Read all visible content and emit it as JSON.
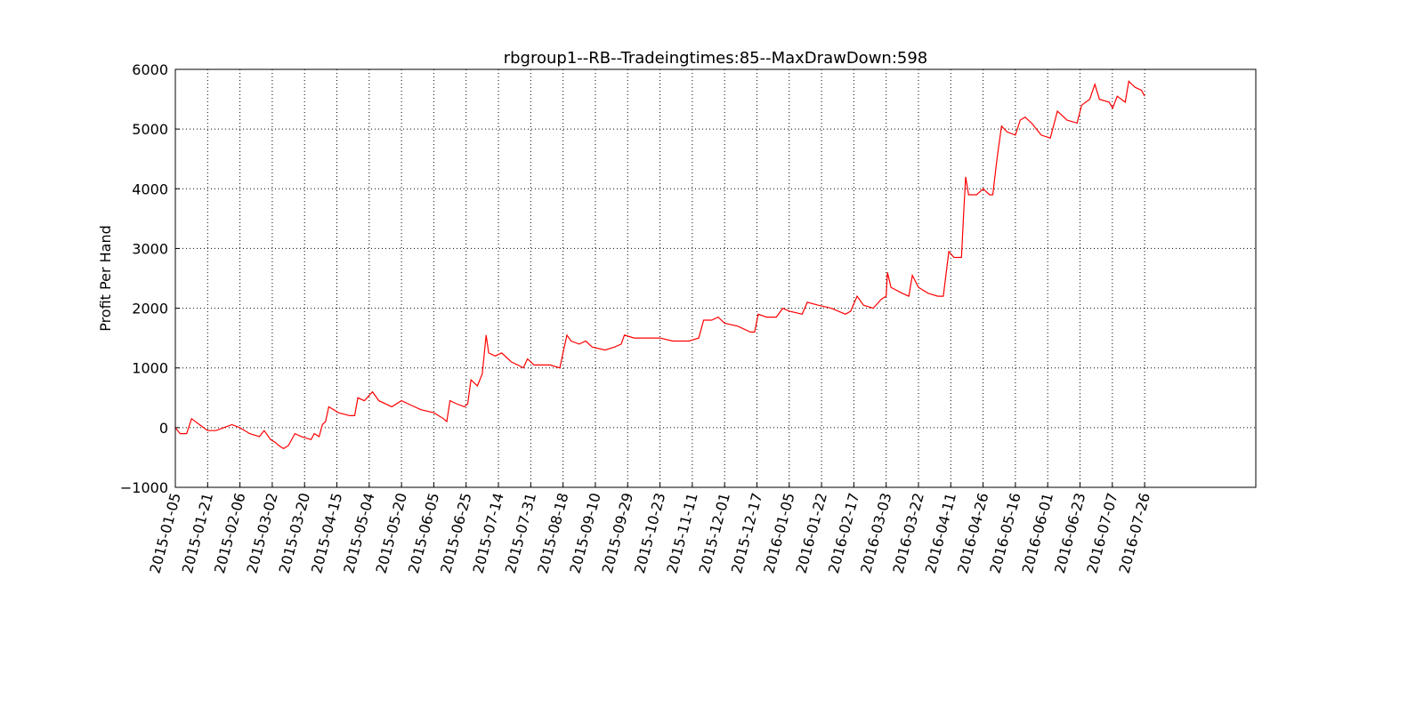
{
  "chart_data": {
    "type": "line",
    "title": "rbgroup1--RB--Tradeingtimes:85--MaxDrawDown:598",
    "ylabel": "Profit Per Hand",
    "color": "#ff0000",
    "grid": true,
    "xlim": [
      0,
      3344
    ],
    "ylim": [
      -1000,
      6000
    ],
    "yticks": [
      {
        "value": -1000,
        "label": "−1000"
      },
      0,
      1000,
      2000,
      3000,
      4000,
      5000,
      6000
    ],
    "xticks": [
      {
        "value": 0,
        "label": "2015-01-05"
      },
      {
        "value": 100,
        "label": "2015-01-21"
      },
      {
        "value": 200,
        "label": "2015-02-06"
      },
      {
        "value": 300,
        "label": "2015-03-02"
      },
      {
        "value": 400,
        "label": "2015-03-20"
      },
      {
        "value": 500,
        "label": "2015-04-15"
      },
      {
        "value": 600,
        "label": "2015-05-04"
      },
      {
        "value": 700,
        "label": "2015-05-20"
      },
      {
        "value": 800,
        "label": "2015-06-05"
      },
      {
        "value": 900,
        "label": "2015-06-25"
      },
      {
        "value": 1000,
        "label": "2015-07-14"
      },
      {
        "value": 1100,
        "label": "2015-07-31"
      },
      {
        "value": 1200,
        "label": "2015-08-18"
      },
      {
        "value": 1300,
        "label": "2015-09-10"
      },
      {
        "value": 1400,
        "label": "2015-09-29"
      },
      {
        "value": 1500,
        "label": "2015-10-23"
      },
      {
        "value": 1600,
        "label": "2015-11-11"
      },
      {
        "value": 1700,
        "label": "2015-12-01"
      },
      {
        "value": 1800,
        "label": "2015-12-17"
      },
      {
        "value": 1900,
        "label": "2016-01-05"
      },
      {
        "value": 2000,
        "label": "2016-01-22"
      },
      {
        "value": 2100,
        "label": "2016-02-17"
      },
      {
        "value": 2200,
        "label": "2016-03-03"
      },
      {
        "value": 2300,
        "label": "2016-03-22"
      },
      {
        "value": 2400,
        "label": "2016-04-11"
      },
      {
        "value": 2500,
        "label": "2016-04-26"
      },
      {
        "value": 2600,
        "label": "2016-05-16"
      },
      {
        "value": 2700,
        "label": "2016-06-01"
      },
      {
        "value": 2800,
        "label": "2016-06-23"
      },
      {
        "value": 2900,
        "label": "2016-07-07"
      },
      {
        "value": 3000,
        "label": "2016-07-26"
      }
    ],
    "x": [
      0,
      15,
      35,
      50,
      75,
      100,
      125,
      150,
      175,
      200,
      230,
      260,
      275,
      295,
      310,
      320,
      335,
      350,
      370,
      390,
      420,
      430,
      445,
      455,
      465,
      475,
      490,
      505,
      540,
      555,
      565,
      585,
      610,
      630,
      670,
      700,
      720,
      760,
      800,
      830,
      840,
      850,
      870,
      895,
      905,
      915,
      935,
      950,
      962,
      970,
      990,
      1010,
      1040,
      1060,
      1077,
      1090,
      1110,
      1160,
      1190,
      1200,
      1212,
      1225,
      1250,
      1270,
      1290,
      1330,
      1360,
      1380,
      1390,
      1420,
      1460,
      1500,
      1540,
      1590,
      1620,
      1635,
      1660,
      1680,
      1700,
      1740,
      1780,
      1793,
      1804,
      1830,
      1860,
      1880,
      1900,
      1940,
      1956,
      1990,
      2030,
      2074,
      2090,
      2110,
      2130,
      2160,
      2185,
      2200,
      2204,
      2215,
      2250,
      2270,
      2281,
      2300,
      2330,
      2360,
      2377,
      2394,
      2410,
      2433,
      2440,
      2446,
      2455,
      2480,
      2500,
      2520,
      2530,
      2543,
      2557,
      2575,
      2600,
      2615,
      2630,
      2650,
      2680,
      2708,
      2730,
      2760,
      2791,
      2805,
      2830,
      2846,
      2860,
      2890,
      2901,
      2915,
      2940,
      2951,
      2970,
      2990,
      3000
    ],
    "values": [
      0,
      -100,
      -100,
      150,
      50,
      -50,
      -50,
      0,
      50,
      0,
      -100,
      -150,
      -50,
      -200,
      -250,
      -300,
      -350,
      -300,
      -100,
      -150,
      -200,
      -100,
      -150,
      50,
      100,
      350,
      300,
      250,
      200,
      200,
      500,
      450,
      600,
      450,
      350,
      450,
      400,
      300,
      250,
      150,
      100,
      450,
      400,
      350,
      400,
      800,
      700,
      900,
      1550,
      1250,
      1200,
      1250,
      1100,
      1050,
      1000,
      1150,
      1050,
      1050,
      1000,
      1250,
      1550,
      1450,
      1400,
      1450,
      1350,
      1300,
      1350,
      1400,
      1550,
      1500,
      1500,
      1500,
      1450,
      1450,
      1500,
      1800,
      1800,
      1850,
      1750,
      1700,
      1600,
      1600,
      1900,
      1850,
      1850,
      2000,
      1950,
      1900,
      2100,
      2050,
      2000,
      1900,
      1950,
      2200,
      2050,
      2000,
      2150,
      2200,
      2600,
      2350,
      2250,
      2200,
      2550,
      2350,
      2250,
      2200,
      2200,
      2950,
      2850,
      2850,
      3600,
      4200,
      3900,
      3900,
      4000,
      3900,
      3900,
      4500,
      5050,
      4950,
      4900,
      5150,
      5200,
      5100,
      4900,
      4850,
      5300,
      5150,
      5100,
      5400,
      5500,
      5750,
      5500,
      5450,
      5350,
      5550,
      5450,
      5800,
      5700,
      5650,
      5550
    ]
  }
}
